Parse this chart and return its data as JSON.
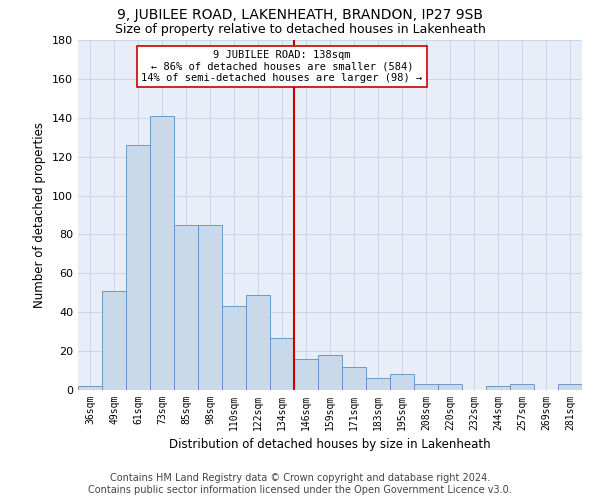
{
  "title": "9, JUBILEE ROAD, LAKENHEATH, BRANDON, IP27 9SB",
  "subtitle": "Size of property relative to detached houses in Lakenheath",
  "xlabel": "Distribution of detached houses by size in Lakenheath",
  "ylabel": "Number of detached properties",
  "categories": [
    "36sqm",
    "49sqm",
    "61sqm",
    "73sqm",
    "85sqm",
    "98sqm",
    "110sqm",
    "122sqm",
    "134sqm",
    "146sqm",
    "159sqm",
    "171sqm",
    "183sqm",
    "195sqm",
    "208sqm",
    "220sqm",
    "232sqm",
    "244sqm",
    "257sqm",
    "269sqm",
    "281sqm"
  ],
  "bar_heights": [
    2,
    51,
    126,
    141,
    85,
    85,
    43,
    49,
    27,
    16,
    18,
    12,
    6,
    8,
    3,
    3,
    0,
    2,
    3,
    0,
    3
  ],
  "bar_color": "#c8d9eb",
  "bar_edge_color": "#5b8ec4",
  "reference_line_x": 8.5,
  "annotation_line1": "9 JUBILEE ROAD: 138sqm",
  "annotation_line2": "← 86% of detached houses are smaller (584)",
  "annotation_line3": "14% of semi-detached houses are larger (98) →",
  "annotation_box_color": "white",
  "annotation_box_edge_color": "#cc0000",
  "vline_color": "#cc0000",
  "ylim": [
    0,
    180
  ],
  "yticks": [
    0,
    20,
    40,
    60,
    80,
    100,
    120,
    140,
    160,
    180
  ],
  "grid_color": "#ccd6e8",
  "background_color": "#e8eef8",
  "footer_line1": "Contains HM Land Registry data © Crown copyright and database right 2024.",
  "footer_line2": "Contains public sector information licensed under the Open Government Licence v3.0.",
  "title_fontsize": 10,
  "subtitle_fontsize": 9,
  "xlabel_fontsize": 8.5,
  "ylabel_fontsize": 8.5,
  "tick_fontsize": 7,
  "ytick_fontsize": 8,
  "annotation_fontsize": 7.5,
  "footer_fontsize": 7
}
